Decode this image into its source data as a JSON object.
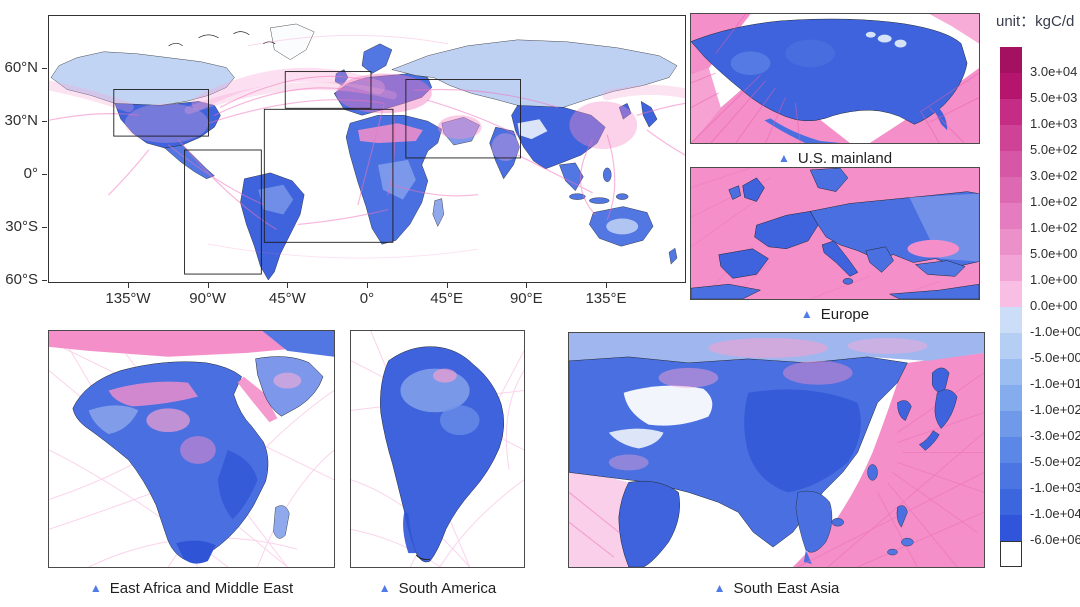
{
  "marker_glyph": "▲",
  "figure_colors": {
    "land_blue_deep": "#3E63DC",
    "land_blue_mid": "#4A6FE0",
    "land_blue_light": "#7D98EB",
    "flux_pink": "#F48FC9",
    "marker_blue": "#4F7BE8"
  },
  "main_map": {
    "y_ticks": [
      "60°N",
      "30°N",
      "0°",
      "30°S",
      "60°S"
    ],
    "x_ticks": [
      "135°W",
      "90°W",
      "45°W",
      "0°",
      "45°E",
      "90°E",
      "135°E"
    ]
  },
  "panels": [
    {
      "id": "us-mainland",
      "label": "U.S. mainland"
    },
    {
      "id": "europe",
      "label": "Europe"
    },
    {
      "id": "east-africa-middle-east",
      "label": "East Africa and Middle East"
    },
    {
      "id": "south-america",
      "label": "South America"
    },
    {
      "id": "south-east-asia",
      "label": "South East Asia"
    }
  ],
  "colorbar": {
    "unit": "unit：kgC/d",
    "entries": [
      {
        "color": "#A31160",
        "boundary_label": "3.0e+04"
      },
      {
        "color": "#B6156E",
        "boundary_label": "5.0e+03"
      },
      {
        "color": "#C42C86",
        "boundary_label": "1.0e+03"
      },
      {
        "color": "#CF4397",
        "boundary_label": "5.0e+02"
      },
      {
        "color": "#D757A7",
        "boundary_label": "3.0e+02"
      },
      {
        "color": "#DE69B3",
        "boundary_label": "1.0e+02"
      },
      {
        "color": "#E57CBF",
        "boundary_label": "1.0e+02"
      },
      {
        "color": "#EC90CA",
        "boundary_label": "5.0e+00"
      },
      {
        "color": "#F2A4D6",
        "boundary_label": "1.0e+00"
      },
      {
        "color": "#F8BEE4",
        "boundary_label": "0.0e+00"
      },
      {
        "color": "#CCDDF7",
        "boundary_label": "-1.0e+00"
      },
      {
        "color": "#B4CEF4",
        "boundary_label": "-5.0e+00"
      },
      {
        "color": "#9BBDF1",
        "boundary_label": "-1.0e+01"
      },
      {
        "color": "#85ACED",
        "boundary_label": "-1.0e+02"
      },
      {
        "color": "#7099E9",
        "boundary_label": "-3.0e+02"
      },
      {
        "color": "#5B87E6",
        "boundary_label": "-5.0e+02"
      },
      {
        "color": "#4A75E2",
        "boundary_label": "-1.0e+03"
      },
      {
        "color": "#3B66DE",
        "boundary_label": "-1.0e+04"
      },
      {
        "color": "#3054DA",
        "boundary_label": "-6.0e+06"
      },
      {
        "color": "#FFFFFF",
        "boundary_label": ""
      }
    ]
  }
}
